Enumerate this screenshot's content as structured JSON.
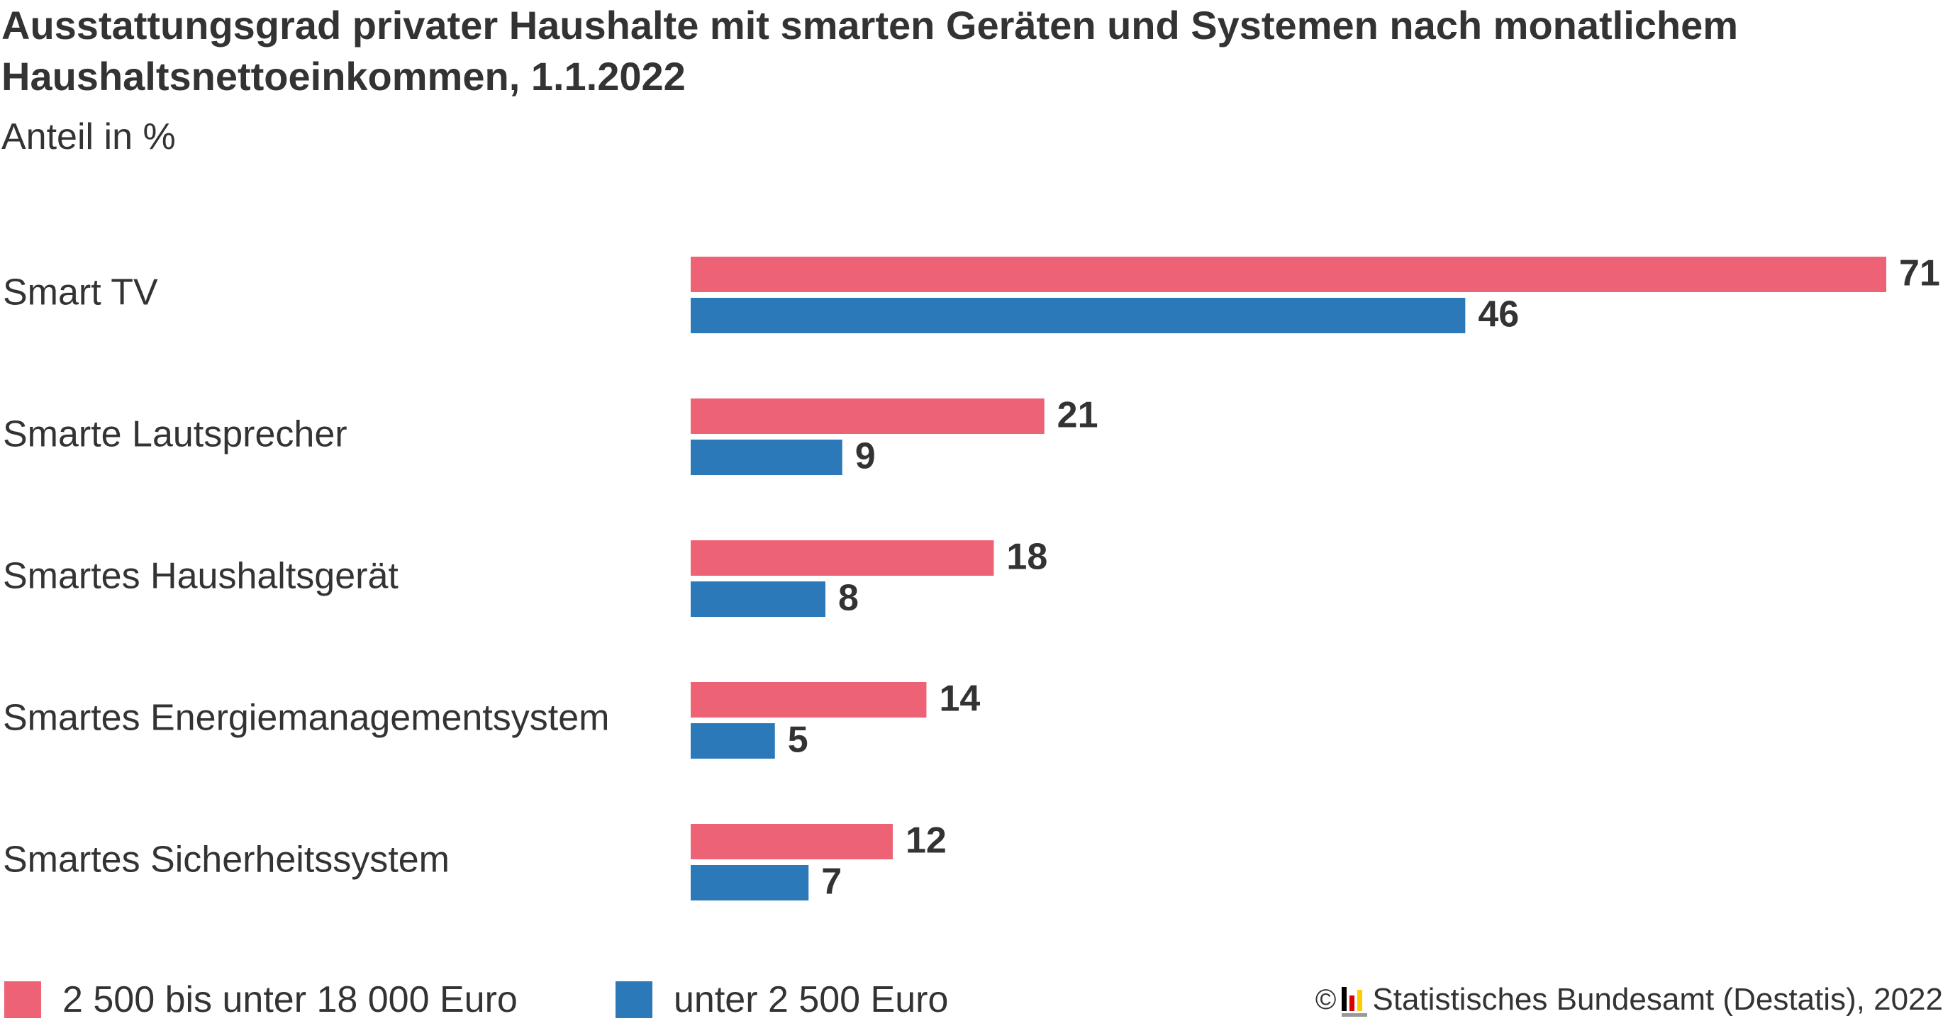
{
  "chart_data": {
    "type": "bar",
    "orientation": "horizontal",
    "title": "Ausstattungsgrad privater Haushalte mit smarten Geräten und Systemen nach monatlichem Haushaltsnettoeinkommen, 1.1.2022",
    "subtitle": "Anteil in %",
    "categories": [
      "Smart TV",
      "Smarte Lautsprecher",
      "Smartes Haushaltsgerät",
      "Smartes Energiemanagementsystem",
      "Smartes Sicherheitssystem"
    ],
    "series": [
      {
        "name": "2 500 bis unter 18 000 Euro",
        "color": "#ed6275",
        "values": [
          71,
          21,
          18,
          14,
          12
        ]
      },
      {
        "name": "unter 2 500 Euro",
        "color": "#2b79b8",
        "values": [
          46,
          9,
          8,
          5,
          7
        ]
      }
    ],
    "xlim": [
      0,
      71
    ],
    "grid": false,
    "legend_position": "bottom-left"
  },
  "source": {
    "text": "Statistisches Bundesamt (Destatis), 2022",
    "copyright": "©"
  }
}
